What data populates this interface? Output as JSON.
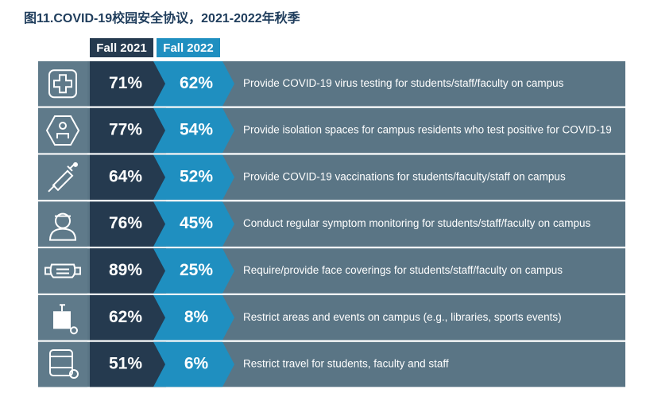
{
  "header": {
    "title": "图11.COVID-19校园安全协议，2021-2022年秋季"
  },
  "columns": [
    "Fall 2021",
    "Fall 2022"
  ],
  "rows": [
    {
      "fall_2021": "71%",
      "fall_2022": "62%",
      "label": "Provide COVID-19 virus testing for students/staff/faculty on campus"
    },
    {
      "fall_2021": "77%",
      "fall_2022": "54%",
      "label": "Provide isolation spaces for campus residents who test positive for COVID-19"
    },
    {
      "fall_2021": "64%",
      "fall_2022": "52%",
      "label": "Provide COVID-19 vaccinations for students/faculty/staff on campus"
    },
    {
      "fall_2021": "76%",
      "fall_2022": "45%",
      "label": "Conduct regular symptom monitoring for students/staff/faculty on campus"
    },
    {
      "fall_2021": "89%",
      "fall_2022": "25%",
      "label": "Require/provide face coverings for students/staff/faculty on campus"
    },
    {
      "fall_2021": "62%",
      "fall_2022": "8%",
      "label": "Restrict areas and events on campus (e.g., libraries, sports events)"
    },
    {
      "fall_2021": "51%",
      "fall_2022": "6%",
      "label": "Restrict travel for students, faculty and staff"
    }
  ]
}
